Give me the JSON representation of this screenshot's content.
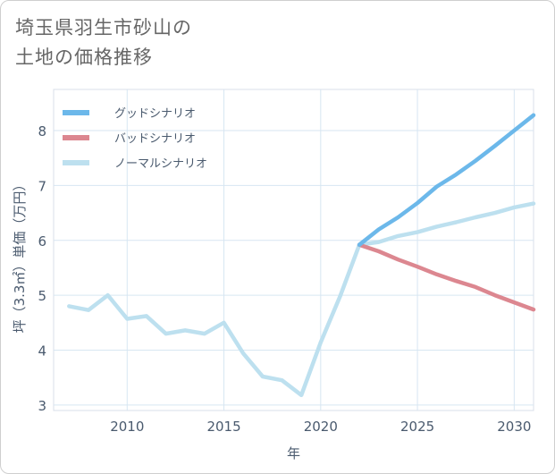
{
  "title": {
    "line1": "埼玉県羽生市砂山の",
    "line2": "土地の価格推移"
  },
  "chart_data": {
    "type": "line",
    "xlabel": "年",
    "ylabel": "坪（3.3㎡）単価（万円）",
    "xlim": [
      2006.2,
      2031
    ],
    "ylim": [
      2.9,
      8.75
    ],
    "x_ticks": [
      2010,
      2015,
      2020,
      2025,
      2030
    ],
    "y_ticks": [
      3,
      4,
      5,
      6,
      7,
      8
    ],
    "grid": true,
    "legend_position": "top-left",
    "series": [
      {
        "name": "グッドシナリオ",
        "color": "#6cb8ea",
        "x": [
          2022,
          2023,
          2024,
          2025,
          2026,
          2027,
          2028,
          2029,
          2030,
          2031
        ],
        "y": [
          5.92,
          6.2,
          6.42,
          6.68,
          6.98,
          7.2,
          7.45,
          7.72,
          8.0,
          8.28
        ]
      },
      {
        "name": "バッドシナリオ",
        "color": "#dc8790",
        "x": [
          2022,
          2023,
          2024,
          2025,
          2026,
          2027,
          2028,
          2029,
          2030,
          2031
        ],
        "y": [
          5.92,
          5.8,
          5.65,
          5.52,
          5.38,
          5.26,
          5.15,
          5.0,
          4.87,
          4.74
        ]
      },
      {
        "name": "ノーマルシナリオ",
        "color": "#bde0ef",
        "x": [
          2007,
          2008,
          2009,
          2010,
          2011,
          2012,
          2013,
          2014,
          2015,
          2016,
          2017,
          2018,
          2019,
          2020,
          2021,
          2022,
          2023,
          2024,
          2025,
          2026,
          2027,
          2028,
          2029,
          2030,
          2031
        ],
        "y": [
          4.8,
          4.73,
          5.0,
          4.57,
          4.62,
          4.3,
          4.36,
          4.3,
          4.5,
          3.94,
          3.52,
          3.45,
          3.18,
          4.14,
          4.98,
          5.92,
          5.97,
          6.08,
          6.15,
          6.25,
          6.33,
          6.42,
          6.5,
          6.6,
          6.67
        ]
      }
    ]
  }
}
